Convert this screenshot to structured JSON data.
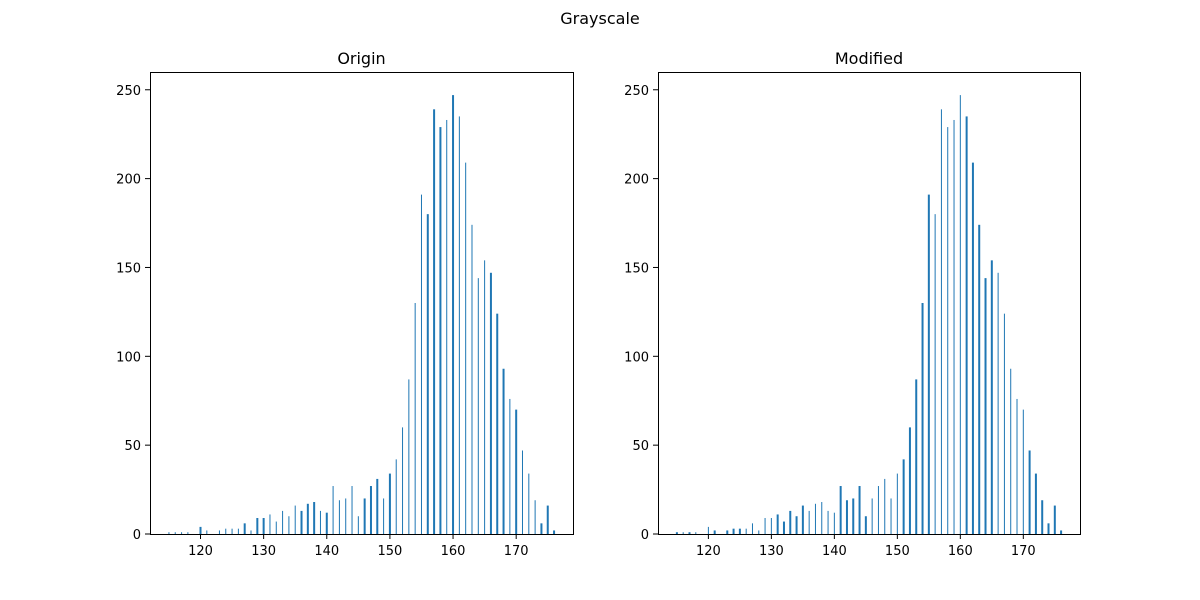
{
  "figure": {
    "suptitle": "Grayscale"
  },
  "chart_data": [
    {
      "type": "bar",
      "title": "Origin",
      "xlabel": "",
      "ylabel": "",
      "xlim": [
        112,
        179
      ],
      "ylim": [
        0,
        260
      ],
      "xticks": [
        120,
        130,
        140,
        150,
        160,
        170
      ],
      "yticks": [
        0,
        50,
        100,
        150,
        200,
        250
      ],
      "color": "#1f77b4",
      "x": [
        115,
        116,
        117,
        118,
        120,
        121,
        123,
        124,
        125,
        126,
        127,
        128,
        129,
        130,
        131,
        132,
        133,
        134,
        135,
        136,
        137,
        138,
        139,
        140,
        141,
        142,
        143,
        144,
        145,
        146,
        147,
        148,
        149,
        150,
        151,
        152,
        153,
        154,
        155,
        156,
        157,
        158,
        159,
        160,
        161,
        162,
        163,
        164,
        165,
        166,
        167,
        168,
        169,
        170,
        171,
        172,
        173,
        174,
        175,
        176
      ],
      "values": [
        1,
        1,
        1,
        1,
        4,
        2,
        2,
        3,
        3,
        3,
        6,
        2,
        9,
        9,
        11,
        7,
        13,
        10,
        16,
        13,
        17,
        18,
        13,
        12,
        27,
        19,
        20,
        27,
        10,
        20,
        27,
        31,
        20,
        34,
        42,
        60,
        87,
        130,
        191,
        180,
        239,
        229,
        233,
        247,
        235,
        209,
        174,
        144,
        154,
        147,
        124,
        93,
        76,
        70,
        47,
        34,
        19,
        6,
        16,
        2
      ],
      "bar_widths": [
        1,
        1,
        1,
        1,
        2,
        1,
        1,
        1,
        1,
        1,
        2,
        1,
        2,
        2,
        1,
        1,
        1,
        1,
        1,
        2,
        2,
        2,
        1,
        2,
        1,
        1,
        1,
        1,
        1,
        2,
        2,
        2,
        1,
        2,
        1,
        1,
        1,
        1,
        1,
        2,
        2,
        2,
        1,
        2,
        1,
        1,
        1,
        1,
        1,
        2,
        2,
        2,
        1,
        2,
        1,
        1,
        1,
        2,
        2,
        2
      ]
    },
    {
      "type": "bar",
      "title": "Modified",
      "xlabel": "",
      "ylabel": "",
      "xlim": [
        112,
        179
      ],
      "ylim": [
        0,
        260
      ],
      "xticks": [
        120,
        130,
        140,
        150,
        160,
        170
      ],
      "yticks": [
        0,
        50,
        100,
        150,
        200,
        250
      ],
      "color": "#1f77b4",
      "x": [
        115,
        116,
        117,
        118,
        120,
        121,
        123,
        124,
        125,
        126,
        127,
        128,
        129,
        130,
        131,
        132,
        133,
        134,
        135,
        136,
        137,
        138,
        139,
        140,
        141,
        142,
        143,
        144,
        145,
        146,
        147,
        148,
        149,
        150,
        151,
        152,
        153,
        154,
        155,
        156,
        157,
        158,
        159,
        160,
        161,
        162,
        163,
        164,
        165,
        166,
        167,
        168,
        169,
        170,
        171,
        172,
        173,
        174,
        175,
        176
      ],
      "values": [
        1,
        1,
        1,
        1,
        4,
        2,
        2,
        3,
        3,
        3,
        6,
        2,
        9,
        9,
        11,
        7,
        13,
        10,
        16,
        13,
        17,
        18,
        13,
        12,
        27,
        19,
        20,
        27,
        10,
        20,
        27,
        31,
        20,
        34,
        42,
        60,
        87,
        130,
        191,
        180,
        239,
        229,
        233,
        247,
        235,
        209,
        174,
        144,
        154,
        147,
        124,
        93,
        76,
        70,
        47,
        34,
        19,
        6,
        16,
        2
      ],
      "bar_widths": [
        2,
        1,
        2,
        1,
        1,
        2,
        2,
        2,
        2,
        1,
        1,
        1,
        1,
        1,
        2,
        2,
        2,
        2,
        2,
        1,
        1,
        1,
        1,
        1,
        2,
        2,
        2,
        2,
        2,
        1,
        1,
        1,
        1,
        1,
        2,
        2,
        2,
        2,
        2,
        1,
        1,
        1,
        1,
        1,
        2,
        2,
        2,
        2,
        2,
        1,
        1,
        1,
        1,
        1,
        2,
        2,
        2,
        2,
        2,
        2
      ]
    }
  ]
}
